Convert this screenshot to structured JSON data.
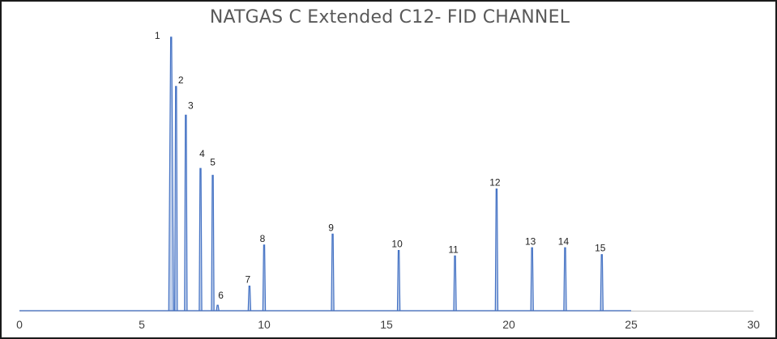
{
  "chart_data": {
    "type": "line",
    "title": "NATGAS C Extended C12- FID CHANNEL",
    "xlabel": "",
    "ylabel": "",
    "xlim": [
      0,
      30
    ],
    "ylim": [
      0,
      100
    ],
    "x_ticks": [
      0,
      5,
      10,
      15,
      20,
      25,
      30
    ],
    "grid": false,
    "legend": "none",
    "line_color": "#4472c4",
    "signal_end_x": 25,
    "peaks": [
      {
        "label": "1",
        "x": 6.2,
        "height": 100
      },
      {
        "label": "2",
        "x": 6.4,
        "height": 82
      },
      {
        "label": "3",
        "x": 6.8,
        "height": 71.5
      },
      {
        "label": "4",
        "x": 7.4,
        "height": 52
      },
      {
        "label": "5",
        "x": 7.9,
        "height": 49.5
      },
      {
        "label": "6",
        "x": 8.1,
        "height": 2
      },
      {
        "label": "7",
        "x": 9.4,
        "height": 9
      },
      {
        "label": "8",
        "x": 10.0,
        "height": 24
      },
      {
        "label": "9",
        "x": 12.8,
        "height": 28
      },
      {
        "label": "10",
        "x": 15.5,
        "height": 22
      },
      {
        "label": "11",
        "x": 17.8,
        "height": 20
      },
      {
        "label": "12",
        "x": 19.5,
        "height": 44.5
      },
      {
        "label": "13",
        "x": 20.95,
        "height": 23
      },
      {
        "label": "14",
        "x": 22.3,
        "height": 23
      },
      {
        "label": "15",
        "x": 23.8,
        "height": 20.5
      }
    ]
  }
}
